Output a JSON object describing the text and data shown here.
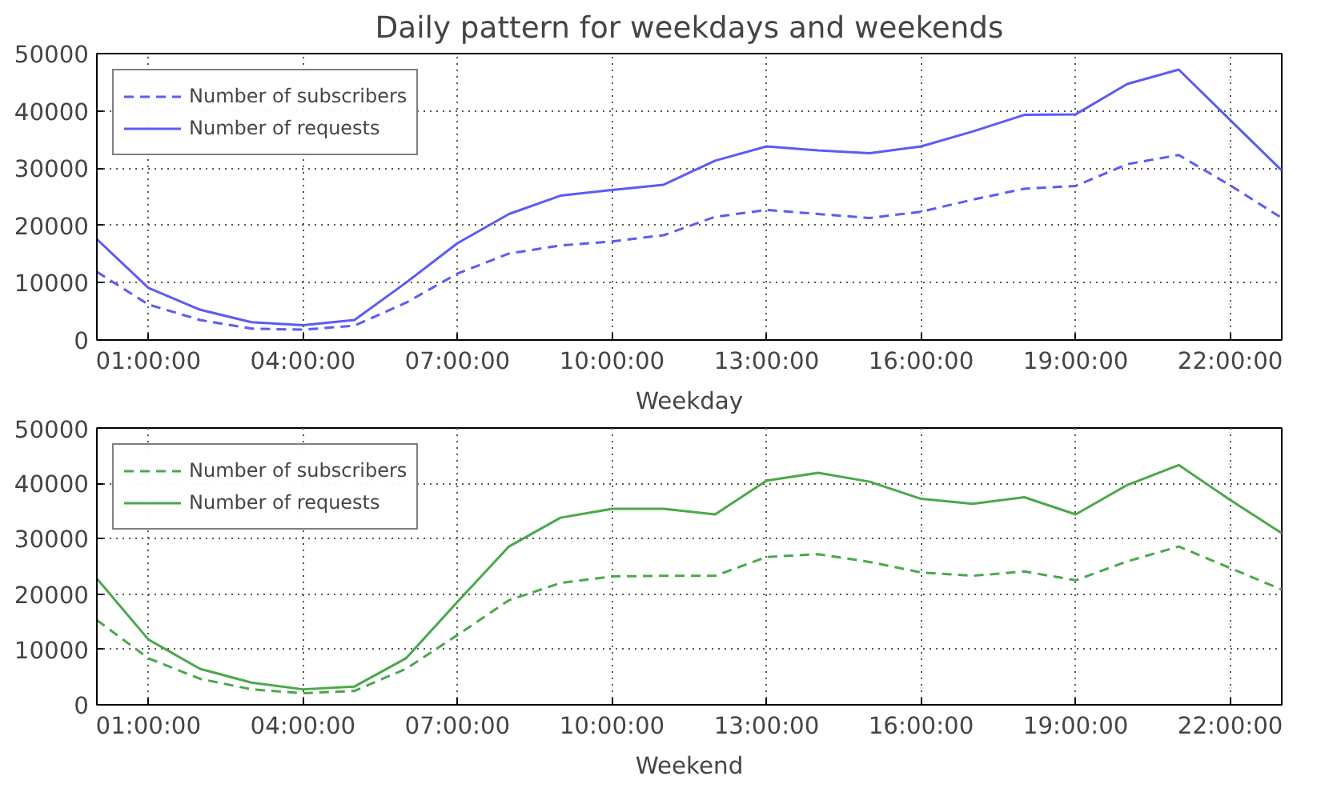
{
  "chart_data": [
    {
      "type": "line",
      "title": "Daily pattern for weekdays and weekends",
      "xlabel": "Weekday",
      "x": [
        0,
        1,
        2,
        3,
        4,
        5,
        6,
        7,
        8,
        9,
        10,
        11,
        12,
        13,
        14,
        15,
        16,
        17,
        18,
        19,
        20,
        21,
        22,
        23
      ],
      "xlim": [
        0,
        23
      ],
      "xticks": [
        {
          "value": 1,
          "label": "01:00:00"
        },
        {
          "value": 4,
          "label": "04:00:00"
        },
        {
          "value": 7,
          "label": "07:00:00"
        },
        {
          "value": 10,
          "label": "10:00:00"
        },
        {
          "value": 13,
          "label": "13:00:00"
        },
        {
          "value": 16,
          "label": "16:00:00"
        },
        {
          "value": 19,
          "label": "19:00:00"
        },
        {
          "value": 22,
          "label": "22:00:00"
        }
      ],
      "ylim": [
        0,
        50000
      ],
      "yticks": [
        0,
        10000,
        20000,
        30000,
        40000,
        50000
      ],
      "grid": true,
      "legend": "top left",
      "series": [
        {
          "name": "Number of subscribers",
          "color": "#5b5bf5",
          "line_style": "dashed",
          "values": [
            11900,
            6200,
            3500,
            2000,
            1800,
            2500,
            6500,
            11600,
            15100,
            16500,
            17200,
            18300,
            21500,
            22700,
            22000,
            21300,
            22400,
            24500,
            26400,
            26900,
            30700,
            32300,
            27000,
            21300
          ]
        },
        {
          "name": "Number of requests",
          "color": "#5b5bf5",
          "line_style": "solid",
          "values": [
            17600,
            9100,
            5300,
            3100,
            2600,
            3500,
            10000,
            16900,
            22000,
            25200,
            26200,
            27100,
            31300,
            33800,
            33100,
            32600,
            33800,
            36400,
            39300,
            39400,
            44700,
            47200,
            38400,
            29600
          ]
        }
      ]
    },
    {
      "type": "line",
      "xlabel": "Weekend",
      "x": [
        0,
        1,
        2,
        3,
        4,
        5,
        6,
        7,
        8,
        9,
        10,
        11,
        12,
        13,
        14,
        15,
        16,
        17,
        18,
        19,
        20,
        21,
        22,
        23
      ],
      "xlim": [
        0,
        23
      ],
      "xticks": [
        {
          "value": 1,
          "label": "01:00:00"
        },
        {
          "value": 4,
          "label": "04:00:00"
        },
        {
          "value": 7,
          "label": "07:00:00"
        },
        {
          "value": 10,
          "label": "10:00:00"
        },
        {
          "value": 13,
          "label": "13:00:00"
        },
        {
          "value": 16,
          "label": "16:00:00"
        },
        {
          "value": 19,
          "label": "19:00:00"
        },
        {
          "value": 22,
          "label": "22:00:00"
        }
      ],
      "ylim": [
        0,
        50000
      ],
      "yticks": [
        0,
        10000,
        20000,
        30000,
        40000,
        50000
      ],
      "grid": true,
      "legend": "top left",
      "series": [
        {
          "name": "Number of subscribers",
          "color": "#4aa84a",
          "line_style": "dashed",
          "values": [
            15300,
            8400,
            4700,
            2800,
            2100,
            2500,
            6500,
            12600,
            18900,
            22000,
            23200,
            23300,
            23300,
            26700,
            27200,
            25800,
            23900,
            23300,
            24100,
            22500,
            25900,
            28600,
            24700,
            20800
          ]
        },
        {
          "name": "Number of requests",
          "color": "#4aa84a",
          "line_style": "solid",
          "values": [
            22800,
            11800,
            6500,
            4000,
            2800,
            3300,
            8400,
            18600,
            28600,
            33800,
            35400,
            35400,
            34400,
            40500,
            41900,
            40300,
            37200,
            36300,
            37500,
            34400,
            39700,
            43300,
            37000,
            31000
          ]
        }
      ]
    }
  ]
}
